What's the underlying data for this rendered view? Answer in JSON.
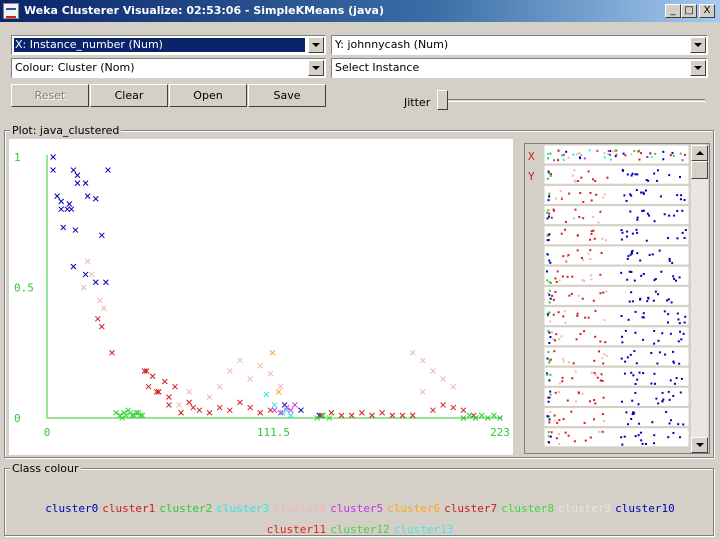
{
  "window": {
    "title": "Weka Clusterer Visualize: 02:53:06 - SimpleKMeans (java)",
    "controls": {
      "minimize": "_",
      "maximize": "□",
      "close": "X"
    }
  },
  "selectors": {
    "x_axis": "X: Instance_number (Num)",
    "y_axis": "Y: johnnycash (Num)",
    "colour": "Colour: Cluster (Nom)",
    "instance": "Select Instance"
  },
  "buttons": {
    "reset": "Reset",
    "clear": "Clear",
    "open": "Open",
    "save": "Save"
  },
  "jitter": {
    "label": "Jitter",
    "value": 0
  },
  "plot": {
    "title": "Plot: java_clustered",
    "x_ticks": [
      "0",
      "111.5",
      "223"
    ],
    "y_ticks": [
      "1",
      "0.5",
      "0"
    ],
    "matrix_labels": {
      "x": "X",
      "y": "Y"
    }
  },
  "legend": {
    "title": "Class colour",
    "clusters": [
      {
        "name": "cluster0",
        "color": "#0000b4"
      },
      {
        "name": "cluster1",
        "color": "#d21e1e"
      },
      {
        "name": "cluster2",
        "color": "#32c832"
      },
      {
        "name": "cluster3",
        "color": "#32e6e6"
      },
      {
        "name": "cluster4",
        "color": "#f0b4b4"
      },
      {
        "name": "cluster5",
        "color": "#c832e6"
      },
      {
        "name": "cluster6",
        "color": "#ffa51e"
      },
      {
        "name": "cluster7",
        "color": "#c81e1e"
      },
      {
        "name": "cluster8",
        "color": "#3cdc3c"
      },
      {
        "name": "cluster9",
        "color": "#e6e6e6"
      },
      {
        "name": "cluster10",
        "color": "#0000b4"
      },
      {
        "name": "cluster11",
        "color": "#e61e1e"
      },
      {
        "name": "cluster12",
        "color": "#46d246"
      },
      {
        "name": "cluster13",
        "color": "#46e6e6"
      }
    ]
  },
  "chart_data": {
    "type": "scatter",
    "title": "Plot: java_clustered",
    "xlabel": "Instance_number",
    "ylabel": "johnnycash",
    "xlim": [
      0,
      223
    ],
    "ylim": [
      0,
      1
    ],
    "x_ticks": [
      0,
      111.5,
      223
    ],
    "y_ticks": [
      0,
      0.5,
      1
    ],
    "marker": "x",
    "series": [
      {
        "name": "cluster0",
        "color": "#0000b4",
        "points": [
          [
            3,
            1.0
          ],
          [
            3,
            0.95
          ],
          [
            5,
            0.85
          ],
          [
            7,
            0.83
          ],
          [
            13,
            0.95
          ],
          [
            15,
            0.93
          ],
          [
            30,
            0.95
          ],
          [
            15,
            0.9
          ],
          [
            19,
            0.9
          ],
          [
            20,
            0.85
          ],
          [
            7,
            0.8
          ],
          [
            10,
            0.8
          ],
          [
            12,
            0.8
          ],
          [
            11,
            0.82
          ],
          [
            24,
            0.84
          ],
          [
            14,
            0.72
          ],
          [
            8,
            0.73
          ],
          [
            27,
            0.7
          ],
          [
            13,
            0.58
          ],
          [
            19,
            0.55
          ],
          [
            24,
            0.52
          ],
          [
            29,
            0.52
          ],
          [
            117,
            0.05
          ],
          [
            125,
            0.03
          ],
          [
            134,
            0.01
          ]
        ]
      },
      {
        "name": "cluster1",
        "color": "#d21e1e",
        "points": [
          [
            25,
            0.38
          ],
          [
            27,
            0.35
          ],
          [
            32,
            0.25
          ],
          [
            48,
            0.18
          ],
          [
            52,
            0.16
          ],
          [
            50,
            0.12
          ],
          [
            54,
            0.1
          ],
          [
            58,
            0.14
          ],
          [
            60,
            0.08
          ],
          [
            63,
            0.12
          ],
          [
            70,
            0.06
          ],
          [
            75,
            0.03
          ],
          [
            80,
            0.02
          ],
          [
            85,
            0.04
          ],
          [
            90,
            0.03
          ],
          [
            95,
            0.06
          ],
          [
            100,
            0.04
          ],
          [
            105,
            0.02
          ],
          [
            110,
            0.03
          ],
          [
            145,
            0.01
          ],
          [
            150,
            0.01
          ],
          [
            155,
            0.02
          ],
          [
            160,
            0.01
          ],
          [
            165,
            0.02
          ],
          [
            170,
            0.01
          ],
          [
            175,
            0.01
          ],
          [
            190,
            0.03
          ],
          [
            195,
            0.05
          ],
          [
            200,
            0.04
          ],
          [
            205,
            0.03
          ],
          [
            210,
            0.01
          ]
        ]
      },
      {
        "name": "cluster2",
        "color": "#32c832",
        "points": [
          [
            34,
            0.02
          ],
          [
            36,
            0.01
          ],
          [
            38,
            0.02
          ],
          [
            40,
            0.03
          ],
          [
            42,
            0.01
          ],
          [
            44,
            0.02
          ],
          [
            46,
            0.01
          ],
          [
            205,
            0.0
          ],
          [
            208,
            0.01
          ],
          [
            211,
            0.0
          ],
          [
            214,
            0.01
          ],
          [
            217,
            0.0
          ],
          [
            220,
            0.01
          ],
          [
            223,
            0.0
          ]
        ]
      },
      {
        "name": "cluster3",
        "color": "#32e6e6",
        "points": [
          [
            108,
            0.09
          ],
          [
            112,
            0.05
          ],
          [
            116,
            0.02
          ],
          [
            118,
            0.03
          ],
          [
            120,
            0.01
          ]
        ]
      },
      {
        "name": "cluster4",
        "color": "#f0b4b4",
        "points": [
          [
            20,
            0.6
          ],
          [
            22,
            0.55
          ],
          [
            18,
            0.5
          ],
          [
            26,
            0.45
          ],
          [
            28,
            0.42
          ],
          [
            90,
            0.18
          ],
          [
            95,
            0.22
          ],
          [
            100,
            0.15
          ],
          [
            105,
            0.2
          ],
          [
            110,
            0.17
          ],
          [
            115,
            0.12
          ],
          [
            85,
            0.12
          ],
          [
            80,
            0.08
          ],
          [
            70,
            0.1
          ],
          [
            65,
            0.05
          ],
          [
            180,
            0.25
          ],
          [
            185,
            0.22
          ],
          [
            190,
            0.18
          ],
          [
            195,
            0.15
          ],
          [
            200,
            0.12
          ],
          [
            185,
            0.1
          ]
        ]
      },
      {
        "name": "cluster5",
        "color": "#c832e6",
        "points": [
          [
            112,
            0.03
          ],
          [
            115,
            0.02
          ],
          [
            118,
            0.04
          ],
          [
            120,
            0.03
          ],
          [
            122,
            0.05
          ]
        ]
      },
      {
        "name": "cluster6",
        "color": "#ffa51e",
        "points": [
          [
            111,
            0.25
          ],
          [
            114,
            0.1
          ]
        ]
      },
      {
        "name": "cluster7",
        "color": "#c81e1e",
        "points": [
          [
            49,
            0.18
          ],
          [
            55,
            0.1
          ],
          [
            60,
            0.05
          ],
          [
            66,
            0.02
          ],
          [
            72,
            0.04
          ],
          [
            135,
            0.01
          ],
          [
            140,
            0.02
          ],
          [
            180,
            0.01
          ]
        ]
      },
      {
        "name": "cluster8",
        "color": "#3cdc3c",
        "points": [
          [
            37,
            0.0
          ],
          [
            39,
            0.01
          ],
          [
            41,
            0.02
          ],
          [
            43,
            0.01
          ],
          [
            45,
            0.02
          ],
          [
            47,
            0.01
          ],
          [
            133,
            0.0
          ],
          [
            136,
            0.01
          ],
          [
            139,
            0.0
          ]
        ]
      }
    ]
  }
}
